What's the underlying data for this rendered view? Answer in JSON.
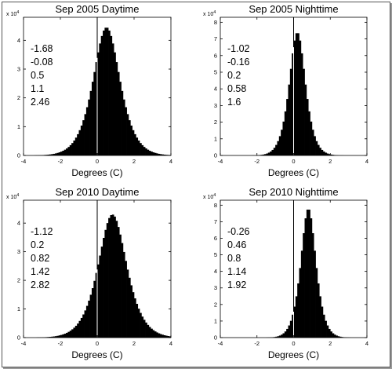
{
  "chart_data": [
    {
      "type": "bar",
      "title": "Sep 2005 Daytime",
      "xlabel": "Degrees (C)",
      "ylabel": "",
      "y_scale_note": "x 10^4",
      "xlim": [
        -4,
        4
      ],
      "ylim": [
        0,
        4.8
      ],
      "xticks": [
        "-4",
        "-2",
        "0",
        "2",
        "4"
      ],
      "yticks": [
        "0",
        "1",
        "2",
        "3",
        "4"
      ],
      "annotations": [
        "-1.68",
        "-0.08",
        "0.5",
        "1.1",
        "2.46"
      ],
      "vline_x": 0,
      "histogram": {
        "center": 0.5,
        "peak": 4.45,
        "spread": 0.8,
        "bin_width": 0.1
      }
    },
    {
      "type": "bar",
      "title": "Sep 2005 Nighttime",
      "xlabel": "Degrees (C)",
      "ylabel": "",
      "y_scale_note": "x 10^4",
      "xlim": [
        -4,
        4
      ],
      "ylim": [
        0,
        8.3
      ],
      "xticks": [
        "-4",
        "-2",
        "0",
        "2",
        "4"
      ],
      "yticks": [
        "0",
        "1",
        "2",
        "3",
        "4",
        "5",
        "6",
        "7",
        "8"
      ],
      "annotations": [
        "-1.02",
        "-0.16",
        "0.2",
        "0.58",
        "1.6"
      ],
      "vline_x": 0,
      "histogram": {
        "center": 0.2,
        "peak": 7.4,
        "spread": 0.48,
        "bin_width": 0.1
      }
    },
    {
      "type": "bar",
      "title": "Sep 2010 Daytime",
      "xlabel": "Degrees (C)",
      "ylabel": "",
      "y_scale_note": "x 10^4",
      "xlim": [
        -4,
        4
      ],
      "ylim": [
        0,
        4.8
      ],
      "xticks": [
        "-4",
        "-2",
        "0",
        "2",
        "4"
      ],
      "yticks": [
        "0",
        "1",
        "2",
        "3",
        "4"
      ],
      "annotations": [
        "-1.12",
        "0.2",
        "0.82",
        "1.42",
        "2.82"
      ],
      "vline_x": 0,
      "histogram": {
        "center": 0.82,
        "peak": 4.3,
        "spread": 0.85,
        "bin_width": 0.1
      }
    },
    {
      "type": "bar",
      "title": "Sep 2010 Nighttime",
      "xlabel": "Degrees (C)",
      "ylabel": "",
      "y_scale_note": "x 10^4",
      "xlim": [
        -4,
        4
      ],
      "ylim": [
        0,
        8.3
      ],
      "xticks": [
        "-4",
        "-2",
        "0",
        "2",
        "4"
      ],
      "yticks": [
        "0",
        "1",
        "2",
        "3",
        "4",
        "5",
        "6",
        "7",
        "8"
      ],
      "annotations": [
        "-0.26",
        "0.46",
        "0.8",
        "1.14",
        "1.92"
      ],
      "vline_x": 0,
      "histogram": {
        "center": 0.8,
        "peak": 7.8,
        "spread": 0.45,
        "bin_width": 0.1
      }
    }
  ],
  "colors": {
    "bars": "#000000",
    "axes": "#000000",
    "zero_line": "#ffffff",
    "background": "#ffffff"
  }
}
